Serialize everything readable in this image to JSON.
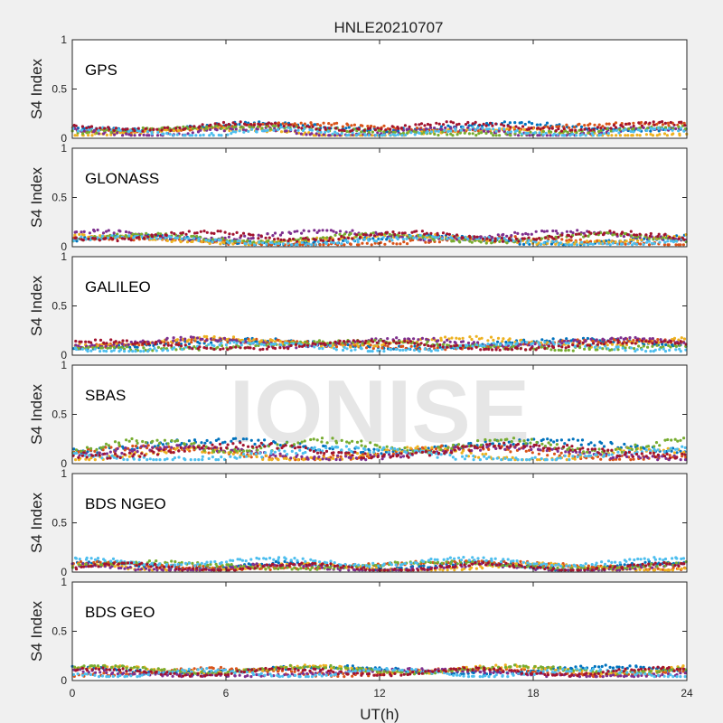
{
  "figure": {
    "title": "HNLE20210707",
    "xlabel": "UT(h)",
    "watermark": "IONISE"
  },
  "chart_data": [
    {
      "type": "scatter",
      "panel_label": "GPS",
      "ylabel": "S4 Index",
      "xlim": [
        0,
        24
      ],
      "ylim": [
        0,
        1
      ],
      "yticks": [
        "0",
        "0.5",
        "1"
      ],
      "xticks": [
        0,
        6,
        12,
        18,
        24
      ],
      "series": [
        {
          "values_range": [
            0.03,
            0.17
          ]
        }
      ]
    },
    {
      "type": "scatter",
      "panel_label": "GLONASS",
      "ylabel": "S4 Index",
      "xlim": [
        0,
        24
      ],
      "ylim": [
        0,
        1
      ],
      "yticks": [
        "0",
        "0.5",
        "1"
      ],
      "xticks": [
        0,
        6,
        12,
        18,
        24
      ],
      "series": [
        {
          "values_range": [
            0.02,
            0.17
          ]
        }
      ]
    },
    {
      "type": "scatter",
      "panel_label": "GALILEO",
      "ylabel": "S4 Index",
      "xlim": [
        0,
        24
      ],
      "ylim": [
        0,
        1
      ],
      "yticks": [
        "0",
        "0.5",
        "1"
      ],
      "xticks": [
        0,
        6,
        12,
        18,
        24
      ],
      "series": [
        {
          "values_range": [
            0.04,
            0.19
          ]
        }
      ]
    },
    {
      "type": "scatter",
      "panel_label": "SBAS",
      "ylabel": "S4 Index",
      "xlim": [
        0,
        24
      ],
      "ylim": [
        0,
        1
      ],
      "yticks": [
        "0",
        "0.5",
        "1"
      ],
      "xticks": [
        0,
        6,
        12,
        18,
        24
      ],
      "series": [
        {
          "values_range": [
            0.04,
            0.26
          ]
        }
      ]
    },
    {
      "type": "scatter",
      "panel_label": "BDS NGEO",
      "ylabel": "S4 Index",
      "xlim": [
        0,
        24
      ],
      "ylim": [
        0,
        1
      ],
      "yticks": [
        "0",
        "0.5",
        "1"
      ],
      "xticks": [
        0,
        6,
        12,
        18,
        24
      ],
      "series": [
        {
          "values_range": [
            0.02,
            0.15
          ]
        }
      ]
    },
    {
      "type": "scatter",
      "panel_label": "BDS GEO",
      "ylabel": "S4 Index",
      "xlim": [
        0,
        24
      ],
      "ylim": [
        0,
        1
      ],
      "yticks": [
        "0",
        "0.5",
        "1"
      ],
      "xticks": [
        0,
        6,
        12,
        18,
        24
      ],
      "series": [
        {
          "values_range": [
            0.04,
            0.17
          ]
        }
      ]
    }
  ],
  "colors": [
    "#0072BD",
    "#D95319",
    "#EDB120",
    "#7E2F8E",
    "#77AC30",
    "#4DBEEE",
    "#A2142F"
  ]
}
